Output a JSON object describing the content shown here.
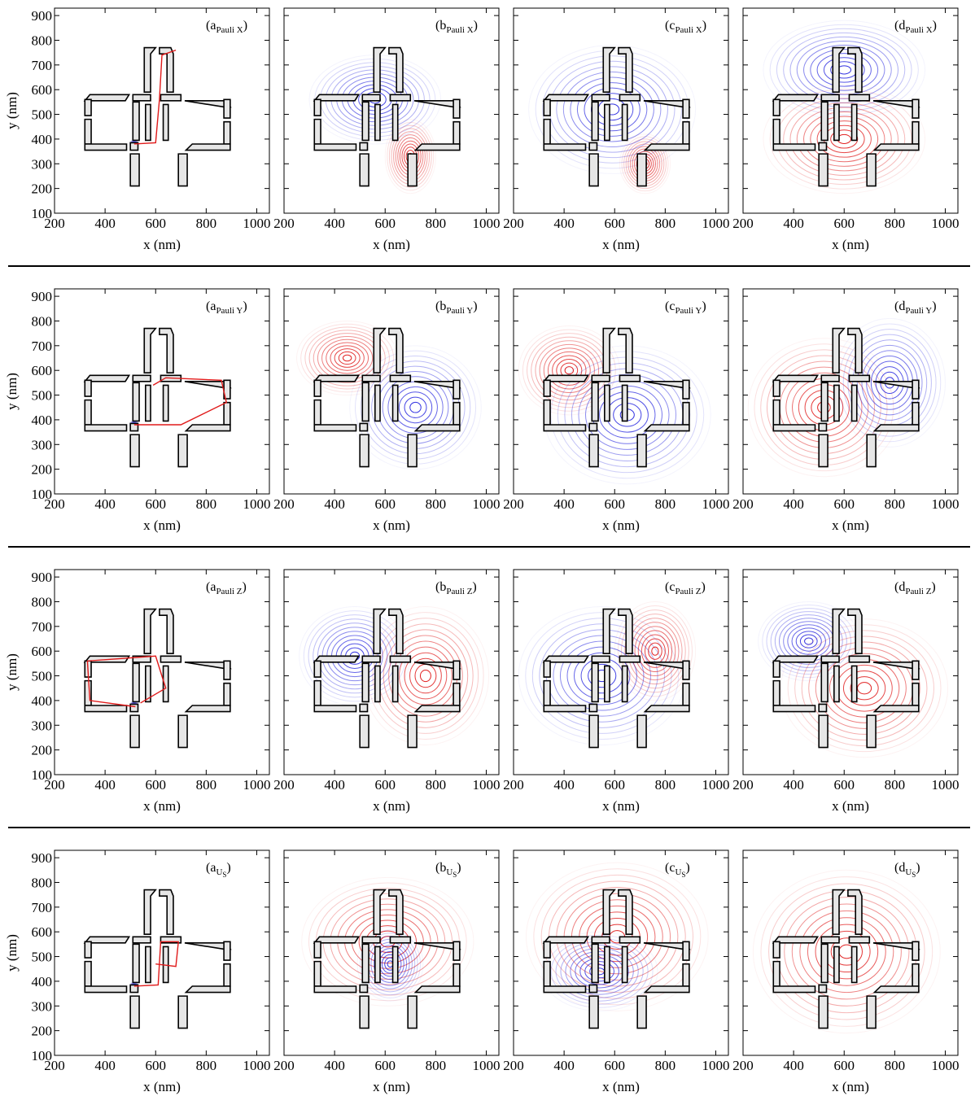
{
  "chart_data": [
    {
      "type": "contour",
      "label": {
        "prefix": "(a",
        "subscript": "Pauli X",
        "suffix": ")"
      },
      "x_label": "x (nm)",
      "y_label": "y (nm)",
      "ytick_labels": true,
      "xlim": [
        200,
        1050
      ],
      "ylim": [
        100,
        930
      ],
      "xticks": [
        200,
        400,
        600,
        800,
        1000
      ],
      "yticks": [
        100,
        200,
        300,
        400,
        500,
        600,
        700,
        800,
        900
      ]
    },
    {
      "type": "contour",
      "label": {
        "prefix": "(b",
        "subscript": "Pauli X",
        "suffix": ")"
      },
      "x_label": "x (nm)",
      "ytick_labels": false,
      "xlim": [
        200,
        1050
      ],
      "ylim": [
        100,
        930
      ],
      "xticks": [
        200,
        400,
        600,
        800,
        1000
      ],
      "yticks": [
        100,
        200,
        300,
        400,
        500,
        600,
        700,
        800,
        900
      ]
    },
    {
      "type": "contour",
      "label": {
        "prefix": "(c",
        "subscript": "Pauli X",
        "suffix": ")"
      },
      "x_label": "x (nm)",
      "ytick_labels": false,
      "xlim": [
        200,
        1050
      ],
      "ylim": [
        100,
        930
      ],
      "xticks": [
        200,
        400,
        600,
        800,
        1000
      ],
      "yticks": [
        100,
        200,
        300,
        400,
        500,
        600,
        700,
        800,
        900
      ]
    },
    {
      "type": "contour",
      "label": {
        "prefix": "(d",
        "subscript": "Pauli X",
        "suffix": ")"
      },
      "x_label": "x (nm)",
      "ytick_labels": false,
      "xlim": [
        200,
        1050
      ],
      "ylim": [
        100,
        930
      ],
      "xticks": [
        200,
        400,
        600,
        800,
        1000
      ],
      "yticks": [
        100,
        200,
        300,
        400,
        500,
        600,
        700,
        800,
        900
      ]
    },
    {
      "type": "contour",
      "label": {
        "prefix": "(a",
        "subscript": "Pauli Y",
        "suffix": ")"
      },
      "x_label": "x (nm)",
      "y_label": "y (nm)",
      "ytick_labels": true,
      "xlim": [
        200,
        1050
      ],
      "ylim": [
        100,
        930
      ],
      "xticks": [
        200,
        400,
        600,
        800,
        1000
      ],
      "yticks": [
        100,
        200,
        300,
        400,
        500,
        600,
        700,
        800,
        900
      ]
    },
    {
      "type": "contour",
      "label": {
        "prefix": "(b",
        "subscript": "Pauli Y",
        "suffix": ")"
      },
      "x_label": "x (nm)",
      "ytick_labels": false,
      "xlim": [
        200,
        1050
      ],
      "ylim": [
        100,
        930
      ],
      "xticks": [
        200,
        400,
        600,
        800,
        1000
      ],
      "yticks": [
        100,
        200,
        300,
        400,
        500,
        600,
        700,
        800,
        900
      ]
    },
    {
      "type": "contour",
      "label": {
        "prefix": "(c",
        "subscript": "Pauli Y",
        "suffix": ")"
      },
      "x_label": "x (nm)",
      "ytick_labels": false,
      "xlim": [
        200,
        1050
      ],
      "ylim": [
        100,
        930
      ],
      "xticks": [
        200,
        400,
        600,
        800,
        1000
      ],
      "yticks": [
        100,
        200,
        300,
        400,
        500,
        600,
        700,
        800,
        900
      ]
    },
    {
      "type": "contour",
      "label": {
        "prefix": "(d",
        "subscript": "Pauli Y",
        "suffix": ")"
      },
      "x_label": "x (nm)",
      "ytick_labels": false,
      "xlim": [
        200,
        1050
      ],
      "ylim": [
        100,
        930
      ],
      "xticks": [
        200,
        400,
        600,
        800,
        1000
      ],
      "yticks": [
        100,
        200,
        300,
        400,
        500,
        600,
        700,
        800,
        900
      ]
    },
    {
      "type": "contour",
      "label": {
        "prefix": "(a",
        "subscript": "Pauli Z",
        "suffix": ")"
      },
      "x_label": "x (nm)",
      "y_label": "y (nm)",
      "ytick_labels": true,
      "xlim": [
        200,
        1050
      ],
      "ylim": [
        100,
        930
      ],
      "xticks": [
        200,
        400,
        600,
        800,
        1000
      ],
      "yticks": [
        100,
        200,
        300,
        400,
        500,
        600,
        700,
        800,
        900
      ]
    },
    {
      "type": "contour",
      "label": {
        "prefix": "(b",
        "subscript": "Pauli Z",
        "suffix": ")"
      },
      "x_label": "x (nm)",
      "ytick_labels": false,
      "xlim": [
        200,
        1050
      ],
      "ylim": [
        100,
        930
      ],
      "xticks": [
        200,
        400,
        600,
        800,
        1000
      ],
      "yticks": [
        100,
        200,
        300,
        400,
        500,
        600,
        700,
        800,
        900
      ]
    },
    {
      "type": "contour",
      "label": {
        "prefix": "(c",
        "subscript": "Pauli Z",
        "suffix": ")"
      },
      "x_label": "x (nm)",
      "ytick_labels": false,
      "xlim": [
        200,
        1050
      ],
      "ylim": [
        100,
        930
      ],
      "xticks": [
        200,
        400,
        600,
        800,
        1000
      ],
      "yticks": [
        100,
        200,
        300,
        400,
        500,
        600,
        700,
        800,
        900
      ]
    },
    {
      "type": "contour",
      "label": {
        "prefix": "(d",
        "subscript": "Pauli Z",
        "suffix": ")"
      },
      "x_label": "x (nm)",
      "ytick_labels": false,
      "xlim": [
        200,
        1050
      ],
      "ylim": [
        100,
        930
      ],
      "xticks": [
        200,
        400,
        600,
        800,
        1000
      ],
      "yticks": [
        100,
        200,
        300,
        400,
        500,
        600,
        700,
        800,
        900
      ]
    },
    {
      "type": "contour",
      "label": {
        "prefix": "(a",
        "subscript": "U",
        "subsubscript": "S",
        "suffix": ")"
      },
      "x_label": "x (nm)",
      "y_label": "y (nm)",
      "ytick_labels": true,
      "xlim": [
        200,
        1050
      ],
      "ylim": [
        100,
        930
      ],
      "xticks": [
        200,
        400,
        600,
        800,
        1000
      ],
      "yticks": [
        100,
        200,
        300,
        400,
        500,
        600,
        700,
        800,
        900
      ]
    },
    {
      "type": "contour",
      "label": {
        "prefix": "(b",
        "subscript": "U",
        "subsubscript": "S",
        "suffix": ")"
      },
      "x_label": "x (nm)",
      "ytick_labels": false,
      "xlim": [
        200,
        1050
      ],
      "ylim": [
        100,
        930
      ],
      "xticks": [
        200,
        400,
        600,
        800,
        1000
      ],
      "yticks": [
        100,
        200,
        300,
        400,
        500,
        600,
        700,
        800,
        900
      ]
    },
    {
      "type": "contour",
      "label": {
        "prefix": "(c",
        "subscript": "U",
        "subsubscript": "S",
        "suffix": ")"
      },
      "x_label": "x (nm)",
      "ytick_labels": false,
      "xlim": [
        200,
        1050
      ],
      "ylim": [
        100,
        930
      ],
      "xticks": [
        200,
        400,
        600,
        800,
        1000
      ],
      "yticks": [
        100,
        200,
        300,
        400,
        500,
        600,
        700,
        800,
        900
      ]
    },
    {
      "type": "contour",
      "label": {
        "prefix": "(d",
        "subscript": "U",
        "subsubscript": "S",
        "suffix": ")"
      },
      "x_label": "x (nm)",
      "ytick_labels": false,
      "xlim": [
        200,
        1050
      ],
      "ylim": [
        100,
        930
      ],
      "xticks": [
        200,
        400,
        600,
        800,
        1000
      ],
      "yticks": [
        100,
        200,
        300,
        400,
        500,
        600,
        700,
        800,
        900
      ]
    }
  ]
}
